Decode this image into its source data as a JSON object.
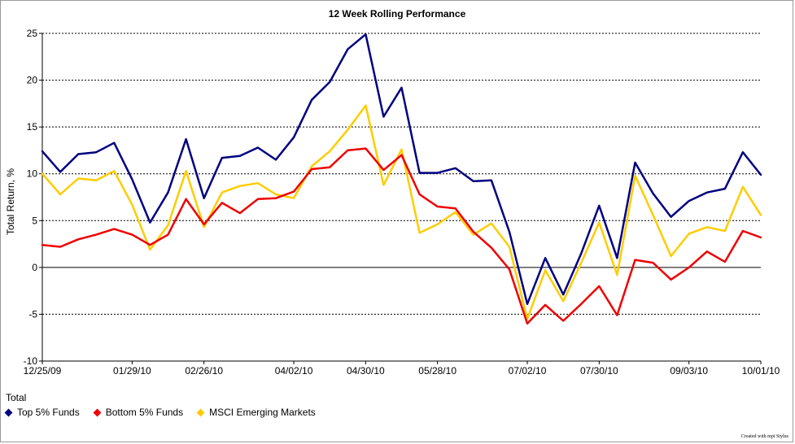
{
  "chart_data": {
    "type": "line",
    "title": "12 Week Rolling Performance",
    "ylabel": "Total Return, %",
    "xlabel": "",
    "ylim": [
      -10,
      25
    ],
    "yticks": [
      -10,
      -5,
      0,
      5,
      10,
      15,
      20,
      25
    ],
    "x": [
      "12/25/09",
      "01/01/10",
      "01/08/10",
      "01/15/10",
      "01/22/10",
      "01/29/10",
      "02/05/10",
      "02/12/10",
      "02/19/10",
      "02/26/10",
      "03/05/10",
      "03/12/10",
      "03/19/10",
      "03/26/10",
      "04/02/10",
      "04/09/10",
      "04/16/10",
      "04/23/10",
      "04/30/10",
      "05/07/10",
      "05/14/10",
      "05/21/10",
      "05/28/10",
      "06/04/10",
      "06/11/10",
      "06/18/10",
      "06/25/10",
      "07/02/10",
      "07/09/10",
      "07/16/10",
      "07/23/10",
      "07/30/10",
      "08/06/10",
      "08/13/10",
      "08/20/10",
      "08/27/10",
      "09/03/10",
      "09/10/10",
      "09/17/10",
      "09/24/10",
      "10/01/10"
    ],
    "xtick_labels": [
      "12/25/09",
      "01/29/10",
      "02/26/10",
      "04/02/10",
      "04/30/10",
      "05/28/10",
      "07/02/10",
      "07/30/10",
      "09/03/10",
      "10/01/10"
    ],
    "grid": "horizontal dashed",
    "legend_title": "Total",
    "legend_position": "bottom-left",
    "series": [
      {
        "name": "Top 5% Funds",
        "color": "#000080",
        "values": [
          12.4,
          10.2,
          12.1,
          12.3,
          13.3,
          9.4,
          4.8,
          8.0,
          13.7,
          7.4,
          11.7,
          11.9,
          12.8,
          11.5,
          13.9,
          17.9,
          19.8,
          23.3,
          24.9,
          16.1,
          19.2,
          10.1,
          10.1,
          10.6,
          9.2,
          9.3,
          3.8,
          -3.9,
          1.0,
          -2.9,
          1.5,
          6.6,
          1.0,
          11.2,
          7.9,
          5.4,
          7.1,
          8.0,
          8.4,
          12.3,
          9.9
        ]
      },
      {
        "name": "Bottom 5% Funds",
        "color": "#ee0000",
        "values": [
          2.4,
          2.2,
          3.0,
          3.5,
          4.1,
          3.5,
          2.4,
          3.5,
          7.3,
          4.6,
          6.9,
          5.8,
          7.3,
          7.4,
          8.1,
          10.5,
          10.7,
          12.5,
          12.7,
          10.4,
          12.0,
          7.8,
          6.5,
          6.3,
          3.8,
          2.1,
          -0.2,
          -6.0,
          -4.0,
          -5.7,
          -3.9,
          -2.0,
          -5.1,
          0.8,
          0.5,
          -1.3,
          0.0,
          1.7,
          0.6,
          3.9,
          3.2
        ]
      },
      {
        "name": "MSCI Emerging Markets",
        "color": "#ffcc00",
        "values": [
          10.0,
          7.8,
          9.5,
          9.3,
          10.3,
          6.7,
          1.9,
          4.5,
          10.3,
          4.3,
          8.0,
          8.7,
          9.0,
          7.8,
          7.4,
          10.8,
          12.4,
          14.7,
          17.3,
          8.8,
          12.6,
          3.7,
          4.6,
          5.9,
          3.5,
          4.7,
          2.2,
          -5.5,
          -0.3,
          -3.6,
          0.5,
          4.8,
          -0.8,
          9.8,
          5.6,
          1.2,
          3.6,
          4.3,
          3.9,
          8.6,
          5.6
        ]
      }
    ]
  },
  "footer": {
    "credit": "Created with mpi Stylus"
  }
}
